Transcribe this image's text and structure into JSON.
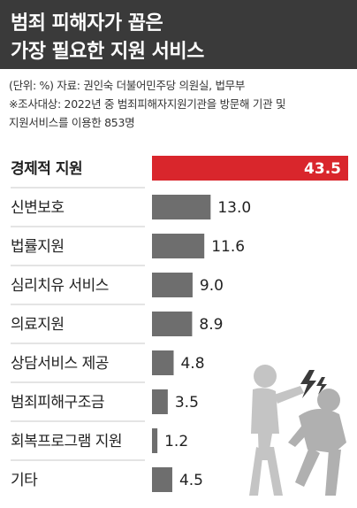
{
  "header": {
    "title_line1": "범죄 피해자가 꼽은",
    "title_line2": "가장 필요한 지원 서비스"
  },
  "source": {
    "line1": "(단위: %)  자료: 권인숙 더불어민주당 의원실, 법무부",
    "line2": "※조사대상: 2022년 중 범죄피해자지원기관을 방문해 기관 및",
    "line3": "지원서비스를 이용한 853명"
  },
  "colors": {
    "header_bg": "#3a3a3a",
    "highlight_bar": "#d9262c",
    "bar": "#6e6e6e"
  },
  "illustration": {
    "icon": "victim-assault-icon"
  },
  "chart_data": {
    "type": "bar",
    "orientation": "horizontal",
    "unit": "%",
    "categories": [
      "경제적 지원",
      "신변보호",
      "법률지원",
      "심리치유 서비스",
      "의료지원",
      "상담서비스 제공",
      "범죄피해구조금",
      "회복프로그램 지원",
      "기타"
    ],
    "values": [
      43.5,
      13.0,
      11.6,
      9.0,
      8.9,
      4.8,
      3.5,
      1.2,
      4.5
    ],
    "value_labels": [
      "43.5",
      "13.0",
      "11.6",
      "9.0",
      "8.9",
      "4.8",
      "3.5",
      "1.2",
      "4.5"
    ],
    "highlight_index": 0,
    "xlim": [
      0,
      43.5
    ]
  }
}
